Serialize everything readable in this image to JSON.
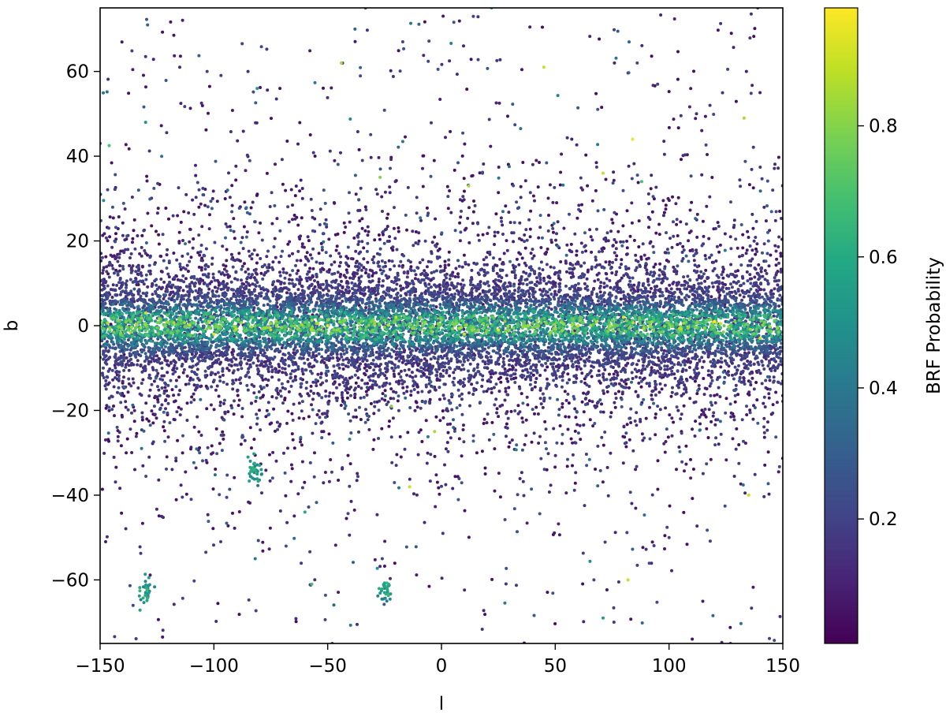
{
  "chart_data": {
    "type": "scatter",
    "title": "",
    "xlabel": "l",
    "ylabel": "b",
    "xlim": [
      -150,
      150
    ],
    "ylim": [
      -75,
      75
    ],
    "xticks": [
      -150,
      -100,
      -50,
      0,
      50,
      100,
      150
    ],
    "xtick_labels": [
      "−150",
      "−100",
      "−50",
      "0",
      "50",
      "100",
      "150"
    ],
    "yticks": [
      -60,
      -40,
      -20,
      0,
      20,
      40,
      60
    ],
    "ytick_labels": [
      "−60",
      "−40",
      "−20",
      "0",
      "20",
      "40",
      "60"
    ],
    "grid": false,
    "colormap": "viridis",
    "colorbar": {
      "label": "BRF Probability",
      "range": [
        0.01,
        0.98
      ],
      "ticks": [
        0.2,
        0.4,
        0.6,
        0.8
      ],
      "tick_labels": [
        "0.2",
        "0.4",
        "0.6",
        "0.8"
      ]
    },
    "distribution": {
      "note": "dense band of points centred on b = 0 across all l; higher probability values concentrated near the plane",
      "band_half_width_b": 12,
      "clusters": [
        {
          "l": -82,
          "b": -34
        },
        {
          "l": -130,
          "b": -63
        },
        {
          "l": -25,
          "b": -63
        }
      ]
    },
    "series": [
      {
        "points": [
          [
            -130,
            63.5,
            0.15
          ],
          [
            -115,
            61,
            0.12
          ],
          [
            -103,
            60,
            0.2
          ],
          [
            -85,
            60,
            0.15
          ],
          [
            -38,
            70,
            0.3
          ],
          [
            -17,
            67,
            0.2
          ],
          [
            -44,
            62,
            0.85
          ],
          [
            -81,
            56,
            0.55
          ],
          [
            -130,
            48,
            0.5
          ],
          [
            14,
            73,
            0.2
          ],
          [
            22,
            75,
            0.6
          ],
          [
            45,
            61,
            0.9
          ],
          [
            76,
            62,
            0.1
          ],
          [
            86,
            62,
            0.2
          ],
          [
            134,
            60,
            0.1
          ],
          [
            140,
            55,
            0.1
          ],
          [
            118,
            52,
            0.15
          ],
          [
            133,
            49,
            0.85
          ],
          [
            95,
            57,
            0.2
          ],
          [
            -150,
            43,
            0.2
          ],
          [
            -146,
            42.5,
            0.7
          ],
          [
            -94,
            32,
            0.4
          ],
          [
            18,
            36,
            0.2
          ],
          [
            84,
            44,
            0.95
          ],
          [
            71,
            36,
            0.9
          ],
          [
            -27,
            35,
            0.8
          ],
          [
            12,
            33,
            0.85
          ],
          [
            88,
            34,
            0.7
          ],
          [
            -82,
            -34,
            0.6
          ],
          [
            -85,
            -31,
            0.55
          ],
          [
            -80,
            -33,
            0.6
          ],
          [
            -83,
            -36,
            0.5
          ],
          [
            -81,
            -35,
            0.55
          ],
          [
            -84,
            -32,
            0.5
          ],
          [
            -79,
            -35,
            0.45
          ],
          [
            -130,
            -63,
            0.5
          ],
          [
            -129,
            -64,
            0.3
          ],
          [
            -25,
            -63,
            0.55
          ],
          [
            -24,
            -65,
            0.4
          ],
          [
            -57,
            -61,
            0.7
          ],
          [
            71,
            -69,
            0.55
          ],
          [
            127,
            -75,
            0.15
          ],
          [
            -48,
            -75,
            0.2
          ],
          [
            -14,
            -38,
            0.9
          ],
          [
            -3,
            -25,
            0.85
          ],
          [
            -22,
            -19,
            0.8
          ],
          [
            82,
            -60,
            0.9
          ],
          [
            135,
            -40,
            0.9
          ],
          [
            -60,
            -44,
            0.6
          ],
          [
            -110,
            -41,
            0.2
          ],
          [
            -97,
            -51,
            0.2
          ],
          [
            -26,
            -55,
            0.2
          ],
          [
            67,
            -60,
            0.2
          ],
          [
            100,
            -50,
            0.2
          ],
          [
            -50,
            0,
            0.95
          ],
          [
            -100,
            -2,
            0.95
          ],
          [
            25,
            -1,
            0.95
          ],
          [
            120,
            1,
            0.98
          ],
          [
            -130,
            3,
            0.9
          ],
          [
            80,
            2,
            0.95
          ],
          [
            -75,
            -1,
            0.9
          ],
          [
            -20,
            2,
            0.9
          ],
          [
            10,
            -2,
            0.92
          ],
          [
            60,
            0,
            0.9
          ],
          [
            140,
            -3,
            0.9
          ]
        ]
      }
    ]
  }
}
